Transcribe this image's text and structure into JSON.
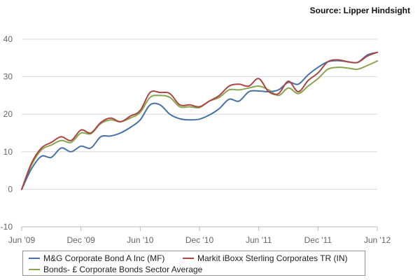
{
  "source": "Source: Lipper Hindsight",
  "chart_data": {
    "type": "line",
    "title": "",
    "xlabel": "",
    "ylabel": "",
    "ylim": [
      -10,
      40
    ],
    "yticks": [
      -10,
      0,
      10,
      20,
      30,
      40
    ],
    "xlim": [
      "2009-06",
      "2012-06"
    ],
    "xticks": [
      {
        "date": "2009-06",
        "label": "Jun '09"
      },
      {
        "date": "2009-12",
        "label": "Dec '09"
      },
      {
        "date": "2010-06",
        "label": "Jun '10"
      },
      {
        "date": "2010-12",
        "label": "Dec '10"
      },
      {
        "date": "2011-06",
        "label": "Jun '11"
      },
      {
        "date": "2011-12",
        "label": "Dec '11"
      },
      {
        "date": "2012-06",
        "label": "Jun '12"
      }
    ],
    "grid": true,
    "legend": "bottom",
    "x": [
      "2009-06",
      "2009-07",
      "2009-08",
      "2009-09",
      "2009-10",
      "2009-11",
      "2009-12",
      "2010-01",
      "2010-02",
      "2010-03",
      "2010-04",
      "2010-05",
      "2010-06",
      "2010-07",
      "2010-08",
      "2010-09",
      "2010-10",
      "2010-11",
      "2010-12",
      "2011-01",
      "2011-02",
      "2011-03",
      "2011-04",
      "2011-05",
      "2011-06",
      "2011-07",
      "2011-08",
      "2011-09",
      "2011-10",
      "2011-11",
      "2011-12",
      "2012-01",
      "2012-02",
      "2012-03",
      "2012-04",
      "2012-05",
      "2012-06"
    ],
    "series": [
      {
        "name": "M&G Corporate Bond A Inc (MF)",
        "color": "#4572A7",
        "values": [
          0.0,
          5.5,
          8.8,
          8.5,
          11.0,
          10.0,
          11.5,
          11.0,
          14.0,
          14.2,
          15.0,
          16.5,
          18.5,
          22.5,
          22.5,
          20.0,
          18.8,
          18.5,
          18.7,
          19.8,
          21.5,
          24.0,
          23.5,
          26.0,
          26.2,
          26.0,
          26.5,
          28.5,
          28.0,
          30.5,
          32.5,
          34.0,
          34.3,
          34.0,
          33.8,
          35.8,
          36.5
        ]
      },
      {
        "name": "Markit iBoxx Sterling Corporates TR (IN)",
        "color": "#AA4643",
        "values": [
          0.0,
          7.0,
          11.0,
          12.5,
          14.0,
          13.0,
          15.8,
          15.0,
          17.8,
          19.0,
          18.0,
          19.5,
          21.0,
          25.8,
          25.8,
          25.5,
          22.5,
          22.5,
          22.0,
          23.5,
          25.0,
          27.5,
          28.0,
          27.5,
          29.5,
          26.0,
          25.5,
          28.8,
          26.0,
          29.0,
          31.0,
          34.0,
          34.5,
          34.0,
          33.8,
          35.5,
          36.5
        ]
      },
      {
        "name": "Bonds- £ Corporate Bonds Sector Average",
        "color": "#89A54E",
        "values": [
          0.0,
          6.5,
          10.5,
          11.8,
          13.0,
          12.5,
          15.0,
          14.8,
          17.5,
          18.5,
          18.0,
          19.0,
          20.5,
          24.5,
          25.0,
          24.5,
          22.0,
          22.0,
          21.8,
          23.5,
          24.5,
          26.5,
          26.5,
          27.0,
          27.5,
          26.5,
          25.0,
          27.0,
          25.5,
          27.5,
          29.5,
          32.0,
          32.5,
          32.3,
          32.0,
          33.0,
          34.2
        ]
      }
    ]
  }
}
